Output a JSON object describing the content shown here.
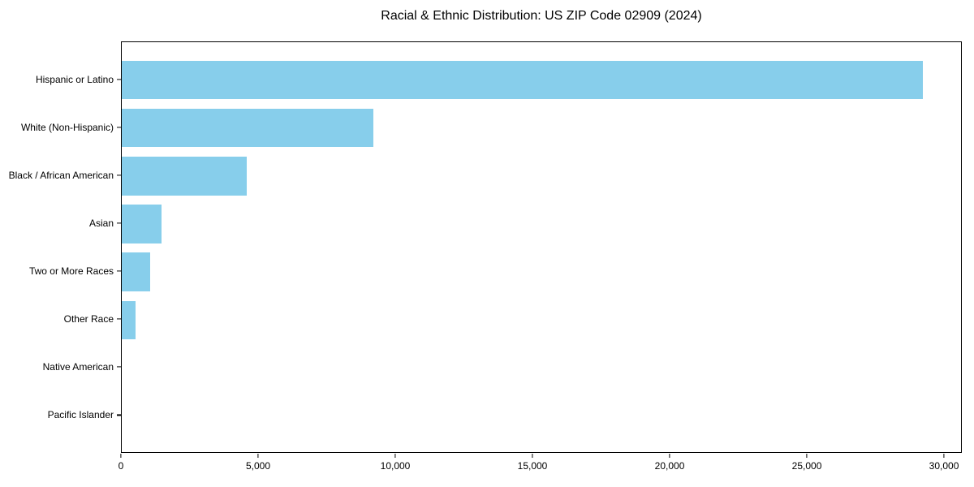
{
  "page": {
    "background_color": "#ffffff",
    "text_color": "#000000"
  },
  "chart_data": {
    "type": "bar",
    "orientation": "horizontal",
    "title": "Racial & Ethnic Distribution: US ZIP Code 02909 (2024)",
    "categories": [
      "Hispanic or Latino",
      "White (Non-Hispanic)",
      "Black / African American",
      "Asian",
      "Two or More Races",
      "Other Race",
      "Native American",
      "Pacific Islander"
    ],
    "values": [
      29200,
      9170,
      4560,
      1450,
      1040,
      510,
      0,
      0
    ],
    "xlabel": "",
    "ylabel": "",
    "xlim": [
      0,
      30650
    ],
    "xticks": {
      "values": [
        0,
        5000,
        10000,
        15000,
        20000,
        25000,
        30000
      ],
      "labels": [
        "0",
        "5,000",
        "10,000",
        "15,000",
        "20,000",
        "25,000",
        "30,000"
      ]
    },
    "bar_color": "#87CEEB",
    "spine_color": "#000000",
    "grid": false,
    "legend": null
  }
}
